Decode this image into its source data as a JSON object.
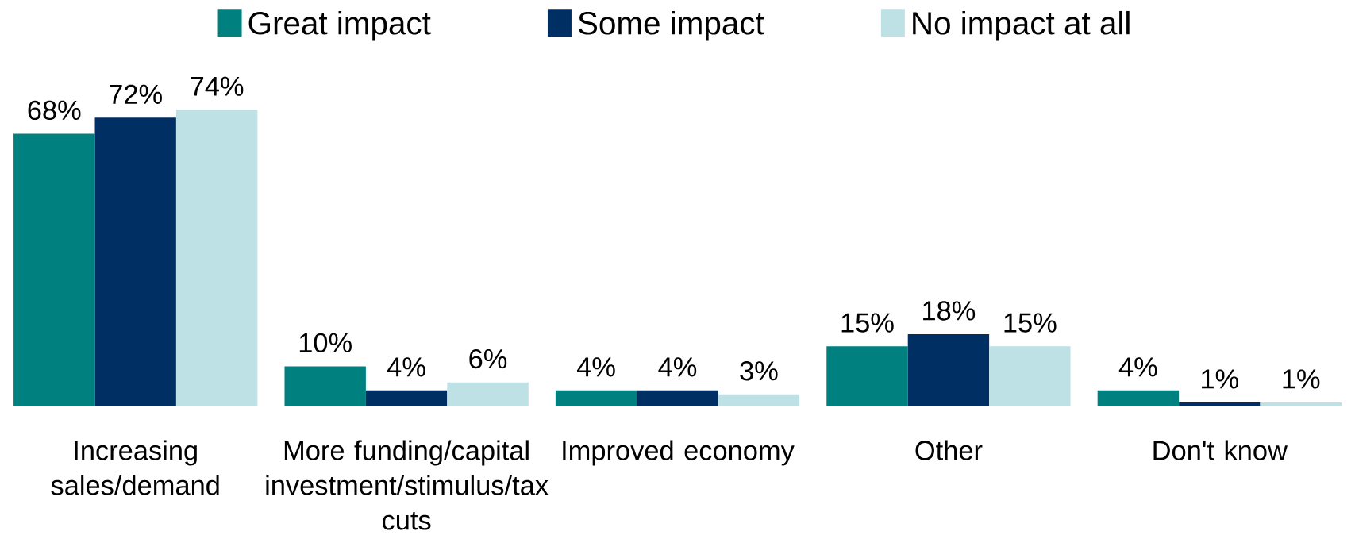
{
  "chart_data": {
    "type": "bar",
    "categories": [
      "Increasing sales/demand",
      "More funding/capital investment/stimulus/tax cuts",
      "Improved economy",
      "Other",
      "Don't know"
    ],
    "series": [
      {
        "name": "Great impact",
        "color": "#00807f",
        "values": [
          68,
          10,
          4,
          15,
          4
        ],
        "value_labels": [
          "68%",
          "10%",
          "4%",
          "15%",
          "4%"
        ]
      },
      {
        "name": "Some impact",
        "color": "#003063",
        "values": [
          72,
          4,
          4,
          18,
          1
        ],
        "value_labels": [
          "72%",
          "4%",
          "4%",
          "18%",
          "1%"
        ]
      },
      {
        "name": "No impact at all",
        "color": "#bde1e5",
        "values": [
          74,
          6,
          3,
          15,
          1
        ],
        "value_labels": [
          "74%",
          "6%",
          "3%",
          "15%",
          "1%"
        ]
      }
    ],
    "legend": "top"
  }
}
